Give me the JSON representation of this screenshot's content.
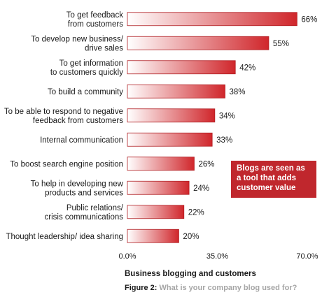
{
  "chart_data": {
    "type": "bar",
    "orientation": "horizontal",
    "categories": [
      [
        "To get feedback",
        "from customers"
      ],
      [
        "To develop new business/",
        "drive sales"
      ],
      [
        "To get information",
        "to customers quickly"
      ],
      [
        "To build a community"
      ],
      [
        "To be able to respond to negative",
        "feedback from customers"
      ],
      [
        "Internal communication"
      ],
      [
        "To boost search engine position"
      ],
      [
        "To help in developing new",
        "products and services"
      ],
      [
        "Public relations/",
        "crisis communications"
      ],
      [
        "Thought leadership/ idea sharing"
      ]
    ],
    "values": [
      66,
      55,
      42,
      38,
      34,
      33,
      26,
      24,
      22,
      20
    ],
    "value_labels": [
      "66%",
      "55%",
      "42%",
      "38%",
      "34%",
      "33%",
      "26%",
      "24%",
      "22%",
      "20%"
    ],
    "xlim": [
      0,
      70
    ],
    "x_ticks": [
      0,
      35,
      70
    ],
    "x_tick_labels": [
      "0.0%",
      "35.0%",
      "70.0%"
    ],
    "bar_gradient": [
      "#ffffff",
      "#d0262b"
    ],
    "bar_border": "#b01e23"
  },
  "callout": {
    "text": "Blogs are seen as a tool that adds customer value",
    "color": "#c0272d"
  },
  "caption": {
    "title": "Business blogging and customers",
    "figure_label": "Figure 2:",
    "figure_question": "What is your company blog used for?"
  }
}
